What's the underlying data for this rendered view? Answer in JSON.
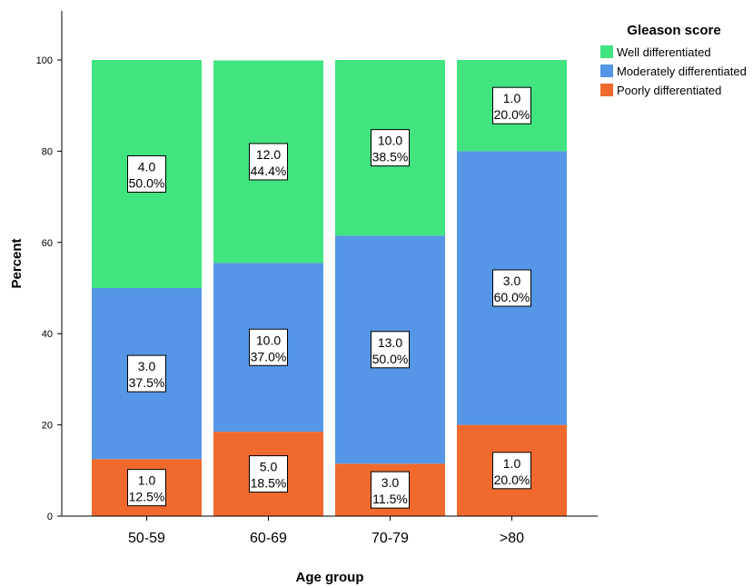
{
  "chart_data": {
    "type": "bar",
    "stacked": true,
    "categories": [
      "50-59",
      "60-69",
      "70-79",
      ">80"
    ],
    "xlabel": "Age group",
    "ylabel": "Percent",
    "ylim": [
      0,
      100
    ],
    "yticks": [
      "0",
      "20",
      "40",
      "60",
      "80",
      "100"
    ],
    "grid": false,
    "legend": {
      "title": "Gleason score",
      "position": "top-right"
    },
    "series": [
      {
        "name": "Poorly differentiated",
        "color": "#f06a2e",
        "values": [
          12.5,
          18.5,
          11.5,
          20.0
        ],
        "counts": [
          "1.0",
          "5.0",
          "3.0",
          "1.0"
        ],
        "percent_labels": [
          "12.5%",
          "18.5%",
          "11.5%",
          "20.0%"
        ]
      },
      {
        "name": "Moderately differentiated",
        "color": "#5596e6",
        "values": [
          37.5,
          37.0,
          50.0,
          60.0
        ],
        "counts": [
          "3.0",
          "10.0",
          "13.0",
          "3.0"
        ],
        "percent_labels": [
          "37.5%",
          "37.0%",
          "50.0%",
          "60.0%"
        ]
      },
      {
        "name": "Well differentiated",
        "color": "#41e47f",
        "values": [
          50.0,
          44.4,
          38.5,
          20.0
        ],
        "counts": [
          "4.0",
          "12.0",
          "10.0",
          "1.0"
        ],
        "percent_labels": [
          "50.0%",
          "44.4%",
          "38.5%",
          "20.0%"
        ]
      }
    ],
    "legend_order": [
      "Well differentiated",
      "Moderately differentiated",
      "Poorly differentiated"
    ]
  }
}
